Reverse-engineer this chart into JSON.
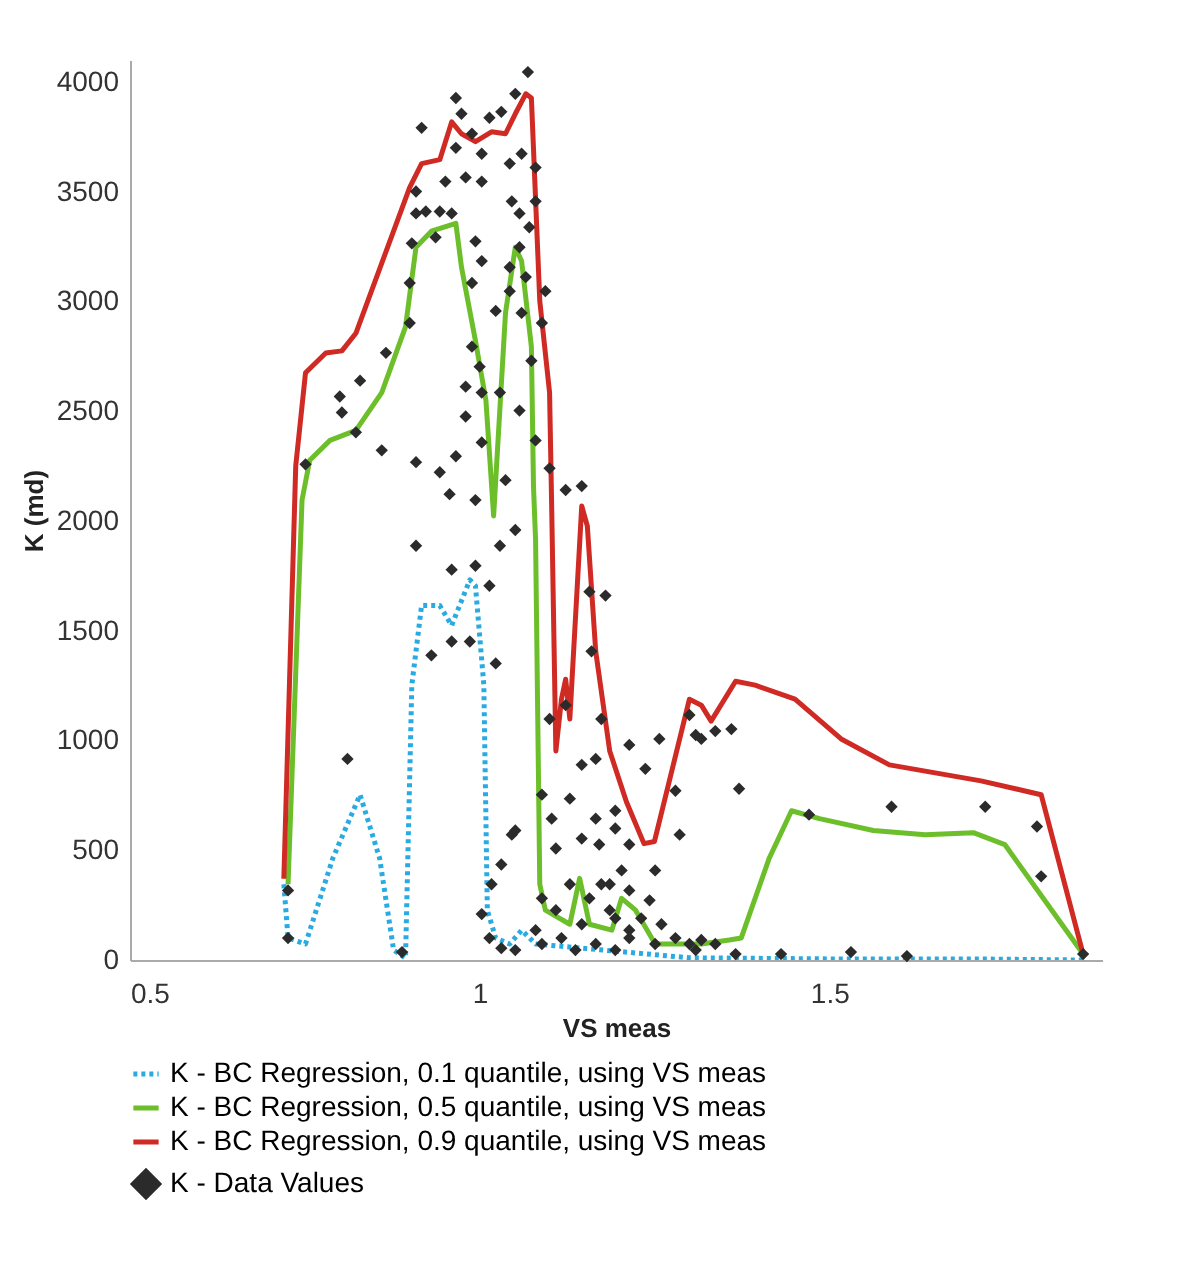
{
  "chart_data": {
    "type": "line",
    "xlabel": "VS meas",
    "ylabel": "K (md)",
    "xlim": [
      0.5,
      1.89
    ],
    "xticks": [
      0.5,
      1,
      1.5
    ],
    "ylim": [
      0,
      4100
    ],
    "yticks": [
      0,
      500,
      1000,
      1500,
      2000,
      2500,
      3000,
      3500,
      4000
    ],
    "grid": false,
    "legend": "bottom",
    "series": [
      {
        "name": "K - BC Regression, 0.1 quantile, using VS meas",
        "line_style": "dotted",
        "color": "#29abe2",
        "x": [
          0.72,
          0.726,
          0.751,
          0.79,
          0.829,
          0.857,
          0.877,
          0.894,
          0.903,
          0.917,
          0.943,
          0.96,
          0.986,
          0.994,
          1.006,
          1.011,
          1.023,
          1.043,
          1.06,
          1.08,
          1.3,
          1.5,
          1.7,
          1.863
        ],
        "values": [
          345,
          100,
          73,
          463,
          753,
          463,
          45,
          9,
          1252,
          1615,
          1615,
          1524,
          1732,
          1705,
          1252,
          227,
          100,
          73,
          136,
          73,
          10,
          5,
          5,
          0
        ]
      },
      {
        "name": "K - BC Regression, 0.5 quantile, using VS meas",
        "line_style": "solid",
        "color": "#6cbf2a",
        "x": [
          0.726,
          0.746,
          0.757,
          0.786,
          0.823,
          0.86,
          0.894,
          0.909,
          0.931,
          0.966,
          0.974,
          0.994,
          1.009,
          1.02,
          1.037,
          1.051,
          1.06,
          1.074,
          1.077,
          1.08,
          1.086,
          1.094,
          1.129,
          1.143,
          1.157,
          1.189,
          1.203,
          1.223,
          1.251,
          1.317,
          1.357,
          1.374,
          1.414,
          1.446,
          1.486,
          1.563,
          1.637,
          1.706,
          1.751,
          1.863
        ],
        "values": [
          345,
          2095,
          2277,
          2367,
          2413,
          2585,
          2884,
          3247,
          3320,
          3356,
          3157,
          2821,
          2549,
          2023,
          2948,
          3247,
          3184,
          2794,
          2159,
          1914,
          345,
          227,
          163,
          372,
          163,
          136,
          281,
          227,
          73,
          73,
          91,
          100,
          463,
          680,
          644,
          590,
          571,
          580,
          526,
          27
        ]
      },
      {
        "name": "K - BC Regression, 0.9 quantile, using VS meas",
        "line_style": "solid",
        "color": "#d02a24",
        "x": [
          0.72,
          0.737,
          0.751,
          0.78,
          0.803,
          0.823,
          0.9,
          0.917,
          0.943,
          0.96,
          0.974,
          0.994,
          1.017,
          1.037,
          1.051,
          1.066,
          1.074,
          1.086,
          1.1,
          1.103,
          1.109,
          1.117,
          1.123,
          1.129,
          1.146,
          1.154,
          1.166,
          1.186,
          1.21,
          1.235,
          1.25,
          1.3,
          1.317,
          1.331,
          1.366,
          1.394,
          1.451,
          1.517,
          1.586,
          1.717,
          1.803,
          1.863
        ],
        "values": [
          370,
          2250,
          2675,
          2765,
          2775,
          2855,
          3520,
          3628,
          3646,
          3818,
          3764,
          3728,
          3773,
          3764,
          3855,
          3946,
          3927,
          3002,
          2585,
          2068,
          952,
          1188,
          1279,
          1098,
          2068,
          1977,
          1406,
          952,
          720,
          530,
          540,
          1188,
          1161,
          1088,
          1270,
          1252,
          1188,
          1007,
          889,
          816,
          753,
          27
        ]
      },
      {
        "name": "K - Data Values",
        "type": "scatter",
        "marker": "diamond",
        "color": "#2b2b2b",
        "x": [
          1.069,
          0.966,
          0.917,
          0.974,
          1.014,
          1.031,
          1.051,
          0.966,
          0.989,
          1.003,
          0.98,
          1.003,
          0.951,
          1.043,
          1.06,
          1.08,
          0.909,
          0.909,
          0.923,
          0.943,
          0.96,
          0.903,
          0.937,
          1.046,
          1.057,
          1.071,
          1.08,
          0.994,
          1.003,
          1.043,
          1.057,
          1.066,
          1.043,
          1.094,
          0.9,
          0.989,
          0.9,
          1.023,
          1.06,
          1.089,
          0.866,
          0.989,
          1.074,
          0.829,
          0.8,
          0.803,
          1.0,
          0.98,
          1.003,
          1.029,
          1.057,
          0.98,
          0.823,
          0.86,
          0.909,
          0.943,
          0.966,
          1.003,
          1.037,
          1.08,
          1.1,
          0.751,
          0.957,
          0.994,
          1.123,
          1.146,
          0.909,
          0.96,
          0.994,
          1.029,
          1.051,
          1.014,
          0.931,
          0.96,
          0.986,
          1.023,
          0.811,
          0.726,
          0.726,
          0.889,
          1.003,
          1.017,
          1.031,
          1.046,
          1.051,
          1.089,
          1.129,
          1.103,
          1.1,
          1.123,
          1.146,
          1.166,
          1.157,
          1.18,
          1.16,
          1.174,
          1.214,
          1.109,
          1.146,
          1.166,
          1.194,
          1.129,
          1.089,
          1.157,
          1.186,
          1.014,
          1.031,
          1.051,
          1.08,
          1.089,
          1.109,
          1.117,
          1.137,
          1.146,
          1.166,
          1.186,
          1.194,
          1.214,
          1.257,
          1.237,
          1.28,
          1.286,
          1.371,
          1.309,
          1.317,
          1.337,
          1.36,
          1.3,
          1.194,
          1.214,
          1.171,
          1.203,
          1.251,
          1.174,
          1.214,
          1.243,
          1.194,
          1.231,
          1.26,
          1.214,
          1.251,
          1.28,
          1.3,
          1.317,
          1.337,
          1.309,
          1.366,
          1.431,
          1.471,
          1.589,
          1.723,
          1.797,
          1.803,
          1.531,
          1.611,
          1.863
        ],
        "values": [
          4045,
          3927,
          3791,
          3855,
          3837,
          3864,
          3946,
          3700,
          3764,
          3673,
          3565,
          3546,
          3546,
          3628,
          3673,
          3610,
          3501,
          3401,
          3410,
          3410,
          3401,
          3265,
          3292,
          3456,
          3401,
          3338,
          3456,
          3274,
          3184,
          3156,
          3247,
          3111,
          3047,
          3047,
          3084,
          3084,
          2902,
          2957,
          2948,
          2902,
          2766,
          2794,
          2730,
          2639,
          2567,
          2494,
          2703,
          2612,
          2585,
          2585,
          2503,
          2476,
          2404,
          2322,
          2268,
          2222,
          2295,
          2358,
          2186,
          2367,
          2240,
          2258,
          2122,
          2095,
          2141,
          2159,
          1887,
          1778,
          1796,
          1887,
          1959,
          1705,
          1388,
          1451,
          1451,
          1351,
          916,
          317,
          100,
          36,
          209,
          345,
          435,
          571,
          590,
          753,
          735,
          644,
          1098,
          1161,
          889,
          916,
          1678,
          1660,
          1406,
          1098,
          980,
          508,
          553,
          644,
          680,
          345,
          281,
          281,
          345,
          100,
          54,
          45,
          136,
          73,
          227,
          100,
          45,
          163,
          73,
          227,
          45,
          136,
          1007,
          871,
          771,
          571,
          780,
          1025,
          1007,
          1043,
          1052,
          1116,
          599,
          526,
          526,
          408,
          408,
          345,
          317,
          272,
          190,
          190,
          163,
          100,
          73,
          100,
          73,
          91,
          73,
          45,
          27,
          27,
          662,
          698,
          698,
          608,
          381,
          36,
          18,
          27
        ]
      }
    ]
  }
}
